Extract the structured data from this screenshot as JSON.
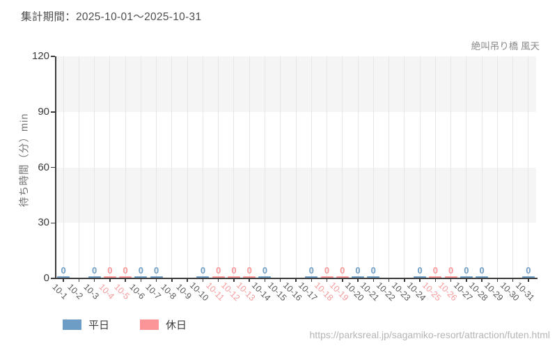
{
  "header": {
    "title": "集計期間：2025-10-01～2025-10-31"
  },
  "chart": {
    "series_label": "絶叫吊り橋 風天",
    "y_axis_label": "待ち時間（分）min",
    "colors": {
      "weekday": "#6d9dc5",
      "holiday": "#fb9597",
      "weekday_tick_label": "#595959",
      "holiday_tick_label": "#f59b9c",
      "axis": "#3a3a3a",
      "gridline": "#e6e6e6",
      "band": "#f5f5f6"
    },
    "legend": [
      {
        "label": "平日",
        "color": "#6d9dc5"
      },
      {
        "label": "休日",
        "color": "#fb9597"
      }
    ]
  },
  "chart_data": {
    "type": "bar",
    "title": "絶叫吊り橋 風天",
    "xlabel": "",
    "ylabel": "待ち時間（分）min",
    "ylim": [
      0,
      120
    ],
    "y_ticks": [
      0,
      30,
      60,
      90,
      120
    ],
    "grid": "vertical gridlines at each date; alternating horizontal gray bands (90-120, 30-60)",
    "legend_position": "bottom-left",
    "categories": [
      "10-1",
      "10-2",
      "10-3",
      "10-4",
      "10-5",
      "10-6",
      "10-7",
      "10-8",
      "10-9",
      "10-10",
      "10-11",
      "10-12",
      "10-13",
      "10-14",
      "10-15",
      "10-16",
      "10-17",
      "10-18",
      "10-19",
      "10-20",
      "10-21",
      "10-22",
      "10-23",
      "10-24",
      "10-25",
      "10-26",
      "10-27",
      "10-28",
      "10-29",
      "10-30",
      "10-31"
    ],
    "points": [
      {
        "date": "10-1",
        "value": 0,
        "day_type": "weekday"
      },
      {
        "date": "10-2",
        "value": null,
        "day_type": "weekday"
      },
      {
        "date": "10-3",
        "value": 0,
        "day_type": "weekday"
      },
      {
        "date": "10-4",
        "value": 0,
        "day_type": "holiday"
      },
      {
        "date": "10-5",
        "value": 0,
        "day_type": "holiday"
      },
      {
        "date": "10-6",
        "value": 0,
        "day_type": "weekday"
      },
      {
        "date": "10-7",
        "value": 0,
        "day_type": "weekday"
      },
      {
        "date": "10-8",
        "value": null,
        "day_type": "weekday"
      },
      {
        "date": "10-9",
        "value": null,
        "day_type": "weekday"
      },
      {
        "date": "10-10",
        "value": 0,
        "day_type": "weekday"
      },
      {
        "date": "10-11",
        "value": 0,
        "day_type": "holiday"
      },
      {
        "date": "10-12",
        "value": 0,
        "day_type": "holiday"
      },
      {
        "date": "10-13",
        "value": 0,
        "day_type": "holiday"
      },
      {
        "date": "10-14",
        "value": 0,
        "day_type": "weekday"
      },
      {
        "date": "10-15",
        "value": null,
        "day_type": "weekday"
      },
      {
        "date": "10-16",
        "value": null,
        "day_type": "weekday"
      },
      {
        "date": "10-17",
        "value": 0,
        "day_type": "weekday"
      },
      {
        "date": "10-18",
        "value": 0,
        "day_type": "holiday"
      },
      {
        "date": "10-19",
        "value": 0,
        "day_type": "holiday"
      },
      {
        "date": "10-20",
        "value": 0,
        "day_type": "weekday"
      },
      {
        "date": "10-21",
        "value": 0,
        "day_type": "weekday"
      },
      {
        "date": "10-22",
        "value": null,
        "day_type": "weekday"
      },
      {
        "date": "10-23",
        "value": null,
        "day_type": "weekday"
      },
      {
        "date": "10-24",
        "value": 0,
        "day_type": "weekday"
      },
      {
        "date": "10-25",
        "value": 0,
        "day_type": "holiday"
      },
      {
        "date": "10-26",
        "value": 0,
        "day_type": "holiday"
      },
      {
        "date": "10-27",
        "value": 0,
        "day_type": "weekday"
      },
      {
        "date": "10-28",
        "value": 0,
        "day_type": "weekday"
      },
      {
        "date": "10-29",
        "value": null,
        "day_type": "weekday"
      },
      {
        "date": "10-30",
        "value": null,
        "day_type": "weekday"
      },
      {
        "date": "10-31",
        "value": 0,
        "day_type": "weekday"
      }
    ],
    "series": [
      {
        "name": "平日",
        "color": "#6d9dc5",
        "values_note": "value 0 on every open weekday"
      },
      {
        "name": "休日",
        "color": "#fb9597",
        "values_note": "value 0 on every open holiday/weekend"
      }
    ]
  },
  "footer": {
    "url": "https://parksreal.jp/sagamiko-resort/attraction/futen.html"
  }
}
